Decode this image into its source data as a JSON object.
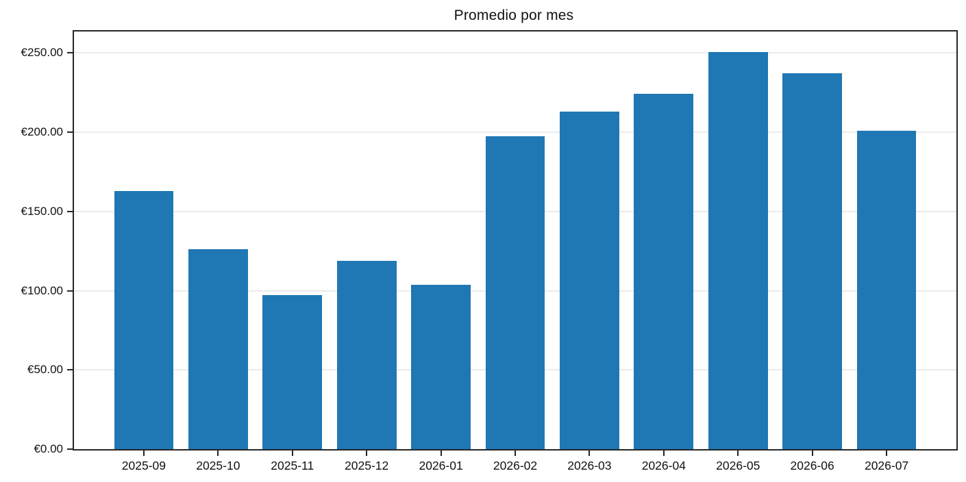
{
  "chart_data": {
    "type": "bar",
    "title": "Promedio por mes",
    "categories": [
      "2025-09",
      "2025-10",
      "2025-11",
      "2025-12",
      "2026-01",
      "2026-02",
      "2026-03",
      "2026-04",
      "2026-05",
      "2026-06",
      "2026-07"
    ],
    "values": [
      163,
      126,
      97,
      119,
      103.5,
      197.5,
      213,
      224,
      250.5,
      237,
      201
    ],
    "xlabel": "",
    "ylabel": "",
    "ylim": [
      0,
      263.5
    ],
    "ytick_values": [
      0,
      50,
      100,
      150,
      200,
      250
    ],
    "ytick_labels": [
      "€0.00",
      "€50.00",
      "€100.00",
      "€150.00",
      "€200.00",
      "€250.00"
    ],
    "currency_prefix": "€",
    "grid": "horizontal",
    "legend": "none",
    "bar_color": "#1f77b4",
    "grid_color": "#ebebeb",
    "spine_color": "#262626",
    "text_color": "#111111",
    "background_color": "#ffffff"
  }
}
